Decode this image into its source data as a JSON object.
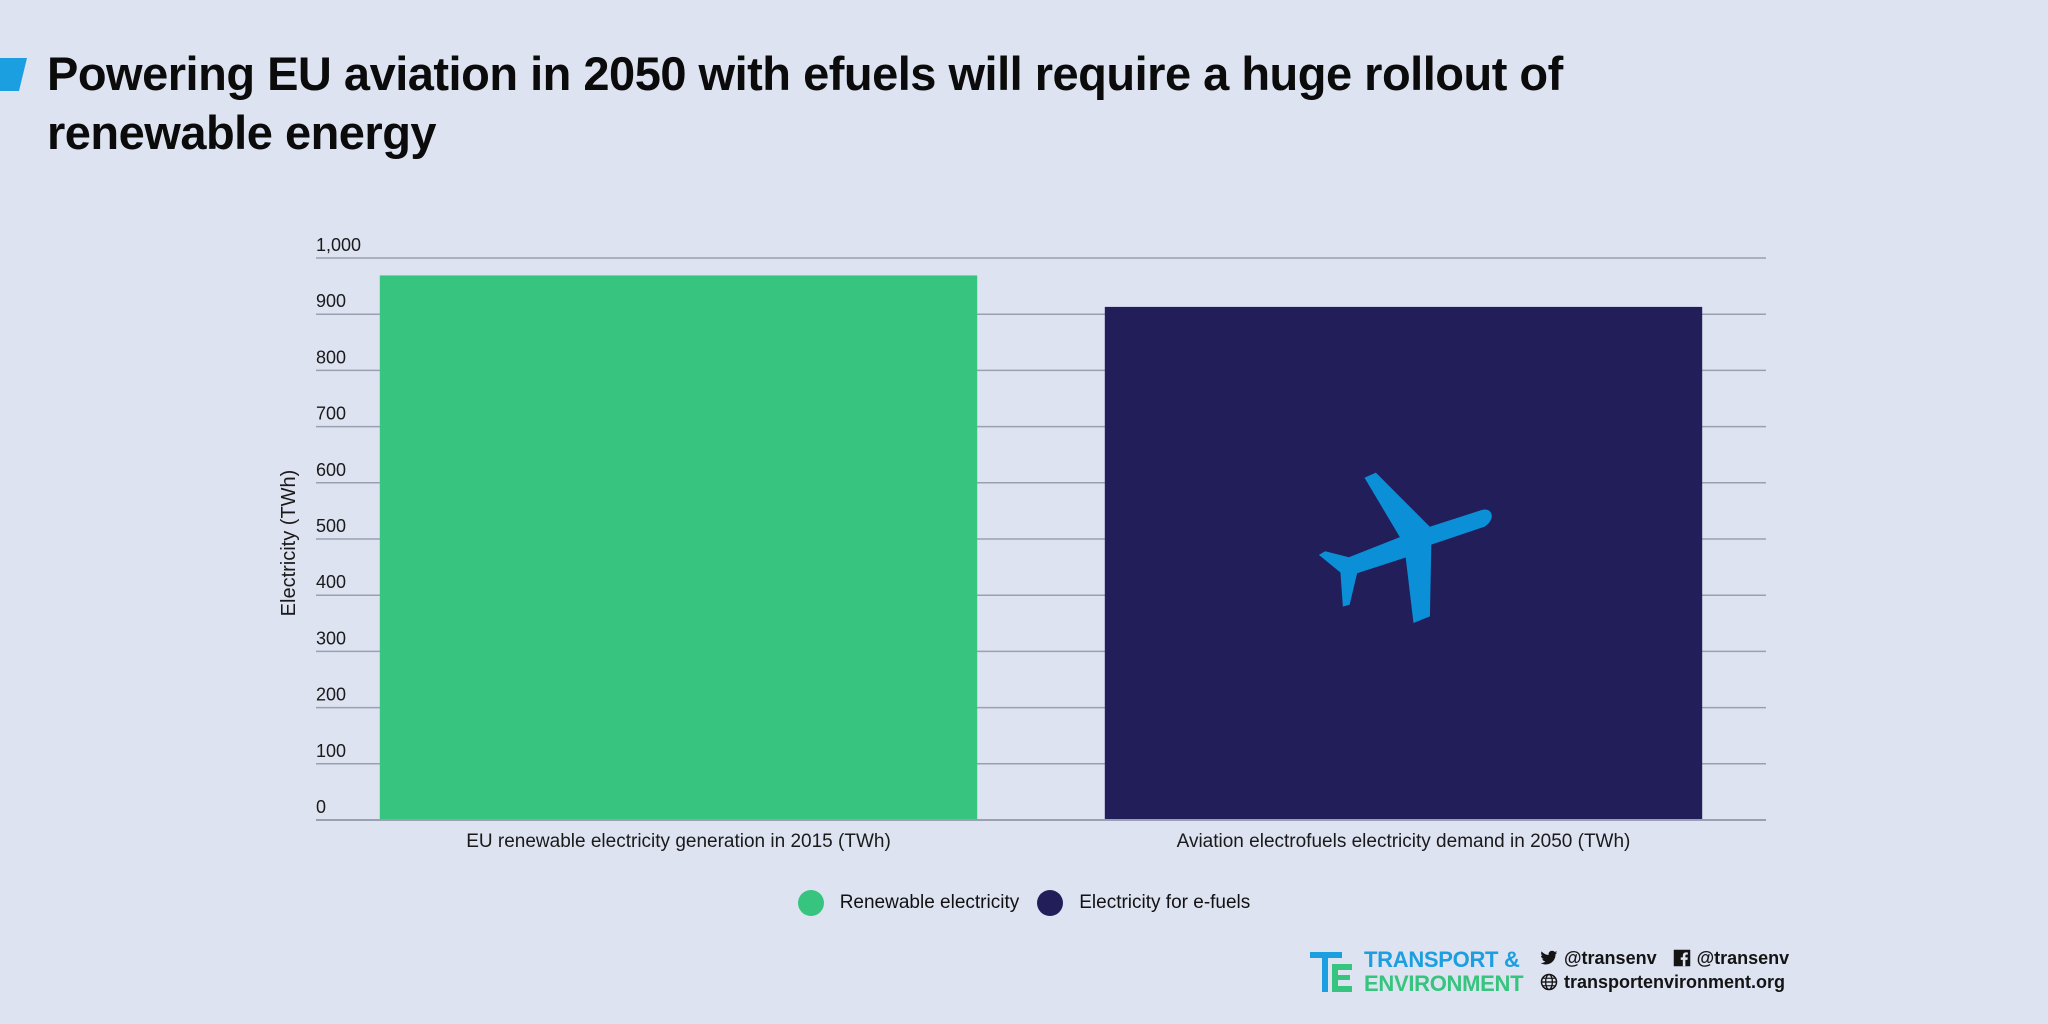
{
  "title": "Powering EU aviation in 2050 with efuels will require a huge rollout of renewable energy",
  "colors": {
    "background": "#dee3f2",
    "accent": "#1b9fe0",
    "renewable": "#37c47e",
    "efuels": "#221e5a",
    "plane": "#0b90d8",
    "grid": "#9aa0b2"
  },
  "chart_data": {
    "type": "bar",
    "title": "Powering EU aviation in 2050 with efuels will require a huge rollout of renewable energy",
    "categories": [
      "EU renewable electricity generation in 2015 (TWh)",
      "Aviation electrofuels electricity demand in 2050 (TWh)"
    ],
    "values": [
      969,
      913
    ],
    "bar_colors": [
      "#37c47e",
      "#221e5a"
    ],
    "xlabel": "",
    "ylabel": "Electricity (TWh)",
    "ylim": [
      0,
      1000
    ],
    "yticks": [
      0,
      100,
      200,
      300,
      400,
      500,
      600,
      700,
      800,
      900,
      1000
    ],
    "ytick_labels": [
      "0",
      "100",
      "200",
      "300",
      "400",
      "500",
      "600",
      "700",
      "800",
      "900",
      "1,000"
    ],
    "grid": true,
    "legend_placement": "bottom-center",
    "icon_on_bar": {
      "bar_index": 1,
      "icon": "airplane-icon"
    }
  },
  "legend": [
    {
      "label": "Renewable electricity",
      "color": "#37c47e"
    },
    {
      "label": "Electricity for e-fuels",
      "color": "#221e5a"
    }
  ],
  "footer": {
    "logo_line1": "TRANSPORT &",
    "logo_line2": "ENVIRONMENT",
    "twitter": "@transenv",
    "facebook": "@transenv",
    "website": "transportenvironment.org"
  }
}
